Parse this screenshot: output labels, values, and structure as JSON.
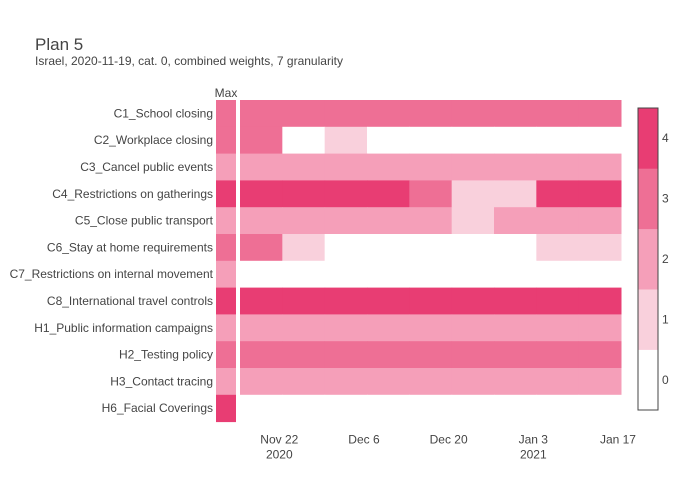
{
  "chart_data": {
    "type": "heatmap",
    "title": "Plan 5",
    "subtitle": "Israel, 2020-11-19, cat. 0, combined weights, 7 granularity",
    "max_label": "Max",
    "rows": [
      "C1_School closing",
      "C2_Workplace closing",
      "C3_Cancel public events",
      "C4_Restrictions on gatherings",
      "C5_Close public transport",
      "C6_Stay at home requirements",
      "C7_Restrictions on internal movement",
      "C8_International travel controls",
      "H1_Public information campaigns",
      "H2_Testing policy",
      "H3_Contact tracing",
      "H6_Facial Coverings"
    ],
    "max_values": [
      3,
      3,
      2,
      4,
      2,
      3,
      2,
      4,
      2,
      3,
      2,
      4
    ],
    "x_weeks": [
      "2020-11-19",
      "2020-11-26",
      "2020-12-03",
      "2020-12-10",
      "2020-12-17",
      "2020-12-24",
      "2020-12-31",
      "2021-01-07",
      "2021-01-14"
    ],
    "values": [
      [
        3,
        3,
        3,
        3,
        3,
        3,
        3,
        3,
        3
      ],
      [
        3,
        0,
        1,
        0,
        0,
        0,
        0,
        0,
        0
      ],
      [
        2,
        2,
        2,
        2,
        2,
        2,
        2,
        2,
        2
      ],
      [
        4,
        4,
        4,
        4,
        3,
        1,
        1,
        4,
        4
      ],
      [
        2,
        2,
        2,
        2,
        2,
        1,
        2,
        2,
        2
      ],
      [
        3,
        1,
        0,
        0,
        0,
        0,
        0,
        1,
        1
      ],
      [
        0,
        0,
        0,
        0,
        0,
        0,
        0,
        0,
        0
      ],
      [
        4,
        4,
        4,
        4,
        4,
        4,
        4,
        4,
        4
      ],
      [
        2,
        2,
        2,
        2,
        2,
        2,
        2,
        2,
        2
      ],
      [
        3,
        3,
        3,
        3,
        3,
        3,
        3,
        3,
        3
      ],
      [
        2,
        2,
        2,
        2,
        2,
        2,
        2,
        2,
        2
      ],
      [
        0,
        0,
        0,
        0,
        0,
        0,
        0,
        0,
        0
      ]
    ],
    "x_ticks": [
      {
        "date": "2020-11-22",
        "label": "Nov 22",
        "year": "2020"
      },
      {
        "date": "2020-12-06",
        "label": "Dec 6",
        "year": ""
      },
      {
        "date": "2020-12-20",
        "label": "Dec 20",
        "year": ""
      },
      {
        "date": "2021-01-03",
        "label": "Jan 3",
        "year": "2021"
      },
      {
        "date": "2021-01-17",
        "label": "Jan 17",
        "year": ""
      }
    ],
    "colorscale": [
      "#ffffff",
      "#f9d0dc",
      "#f59fb9",
      "#ee6f95",
      "#e83d73"
    ],
    "colorbar_ticks": [
      "0",
      "1",
      "2",
      "3",
      "4"
    ],
    "zlim": [
      0,
      4
    ]
  }
}
